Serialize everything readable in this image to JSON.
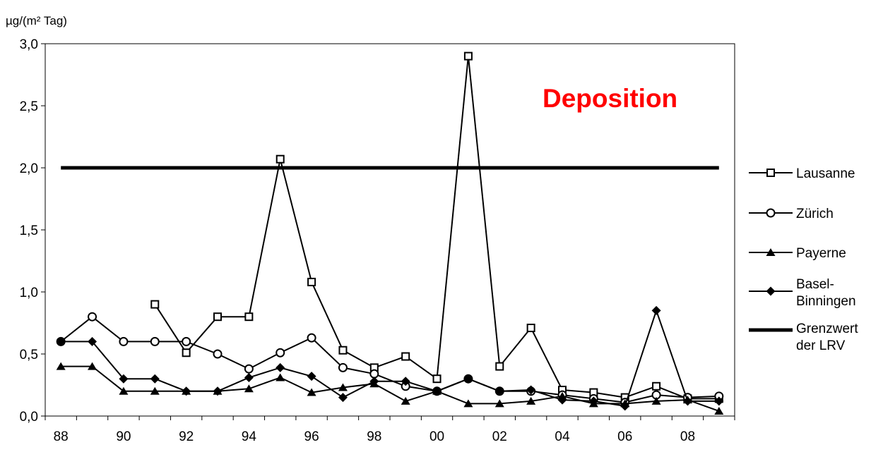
{
  "chart_data": {
    "type": "line",
    "ylabel": "µg/(m² Tag)",
    "annotation": "Deposition",
    "annotation_color": "#ff0000",
    "ylim": [
      0,
      3
    ],
    "y_ticks": [
      "0,0",
      "0,5",
      "1,0",
      "1,5",
      "2,0",
      "2,5",
      "3,0"
    ],
    "y_tick_values": [
      0,
      0.5,
      1,
      1.5,
      2,
      2.5,
      3
    ],
    "x": [
      "88",
      "89",
      "90",
      "91",
      "92",
      "93",
      "94",
      "95",
      "96",
      "97",
      "98",
      "99",
      "00",
      "01",
      "02",
      "03",
      "04",
      "05",
      "06",
      "07",
      "08",
      "09"
    ],
    "x_tick_labels": [
      "88",
      "",
      "90",
      "",
      "92",
      "",
      "94",
      "",
      "96",
      "",
      "98",
      "",
      "00",
      "",
      "02",
      "",
      "04",
      "",
      "06",
      "",
      "08",
      ""
    ],
    "legend_position": "right",
    "series": [
      {
        "name": "Lausanne",
        "marker": "square-open",
        "values": [
          null,
          null,
          null,
          0.9,
          0.51,
          0.8,
          0.8,
          2.07,
          1.08,
          0.53,
          0.39,
          0.48,
          0.3,
          2.9,
          0.4,
          0.71,
          0.21,
          0.19,
          0.15,
          0.24,
          0.14,
          0.14
        ]
      },
      {
        "name": "Zürich",
        "marker": "circle-open",
        "values": [
          0.6,
          0.8,
          0.6,
          0.6,
          0.6,
          0.5,
          0.38,
          0.51,
          0.63,
          0.39,
          0.34,
          0.24,
          0.2,
          0.3,
          0.2,
          0.2,
          0.17,
          0.14,
          0.11,
          0.17,
          0.15,
          0.16
        ]
      },
      {
        "name": "Payerne",
        "marker": "triangle-filled",
        "values": [
          0.4,
          0.4,
          0.2,
          0.2,
          0.2,
          0.2,
          0.22,
          0.31,
          0.19,
          0.23,
          0.26,
          0.12,
          0.2,
          0.1,
          0.1,
          0.12,
          0.16,
          0.1,
          0.1,
          0.12,
          0.13,
          0.04
        ]
      },
      {
        "name": "Basel-Binningen",
        "marker": "diamond-filled",
        "values": [
          0.6,
          0.6,
          0.3,
          0.3,
          0.2,
          0.2,
          0.31,
          0.39,
          0.32,
          0.15,
          0.28,
          0.28,
          0.2,
          0.3,
          0.2,
          0.21,
          0.13,
          0.12,
          0.08,
          0.85,
          0.12,
          0.12
        ]
      },
      {
        "name": "Grenzwert der LRV",
        "marker": "none",
        "thick": true,
        "values": [
          2,
          2,
          2,
          2,
          2,
          2,
          2,
          2,
          2,
          2,
          2,
          2,
          2,
          2,
          2,
          2,
          2,
          2,
          2,
          2,
          2,
          2
        ]
      }
    ]
  }
}
